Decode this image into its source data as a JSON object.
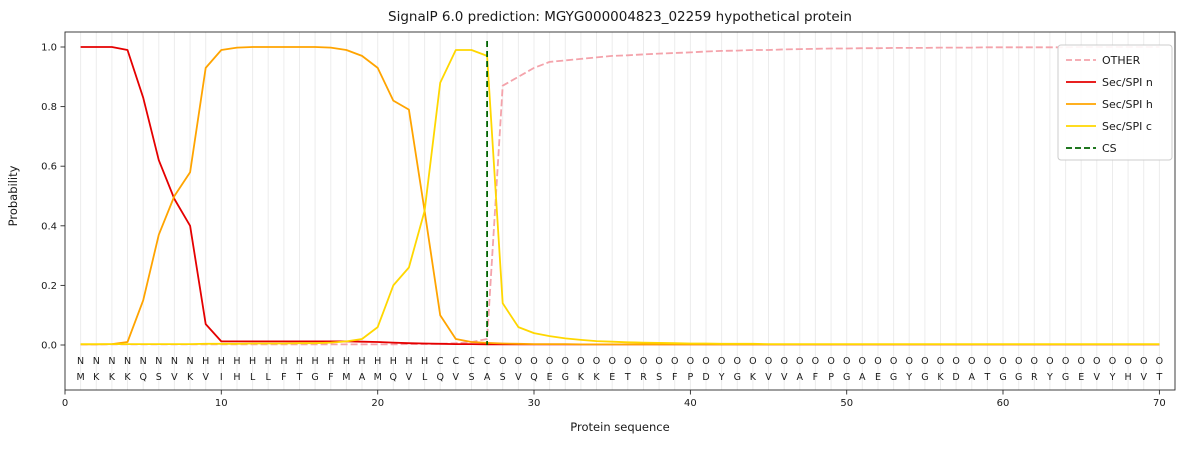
{
  "chart_data": {
    "type": "line",
    "title": "SignalP 6.0 prediction: MGYG000004823_02259 hypothetical protein",
    "xlabel": "Protein sequence",
    "ylabel": "Probability",
    "xlim": [
      0,
      71
    ],
    "ylim": [
      -0.15,
      1.05
    ],
    "x_ticks": [
      0,
      10,
      20,
      30,
      40,
      50,
      60,
      70
    ],
    "y_ticks": [
      0,
      0.2,
      0.4,
      0.6,
      0.8,
      1.0
    ],
    "grid": "vertical-per-residue",
    "legend_position": "upper-right",
    "cs_position": 27,
    "sequence": "MKKKQSVKVIHLLFTGFMAMQVLQVSASVQEGKKETRSFPDYGKVVAFPGAEGYGKDATGGRYGEVYHVT",
    "regions": [
      {
        "label": "N",
        "start": 1,
        "end": 8,
        "color": "#e50000"
      },
      {
        "label": "H",
        "start": 9,
        "end": 23,
        "color": "#ffa400"
      },
      {
        "label": "C",
        "start": 24,
        "end": 27,
        "color": "#eec900"
      },
      {
        "label": "O",
        "start": 28,
        "end": 70,
        "color": "#8c8c8c"
      }
    ],
    "series": [
      {
        "name": "OTHER",
        "color": "#f4a3ab",
        "dash": true,
        "values": [
          0.002,
          0.002,
          0.002,
          0.002,
          0.002,
          0.002,
          0.002,
          0.002,
          0.002,
          0.002,
          0.002,
          0.002,
          0.002,
          0.002,
          0.002,
          0.002,
          0.002,
          0.002,
          0.002,
          0.002,
          0.002,
          0.003,
          0.003,
          0.004,
          0.006,
          0.01,
          0.02,
          0.87,
          0.9,
          0.93,
          0.95,
          0.955,
          0.96,
          0.965,
          0.97,
          0.972,
          0.975,
          0.978,
          0.98,
          0.982,
          0.985,
          0.987,
          0.988,
          0.99,
          0.99,
          0.992,
          0.993,
          0.994,
          0.995,
          0.995,
          0.996,
          0.996,
          0.997,
          0.997,
          0.997,
          0.998,
          0.998,
          0.998,
          0.999,
          0.999,
          0.999,
          0.999,
          0.999,
          0.999,
          1.0,
          1.0,
          1.0,
          1.0,
          1.0,
          1.0
        ]
      },
      {
        "name": "Sec/SPI n",
        "color": "#e50000",
        "dash": false,
        "values": [
          1.0,
          1.0,
          1.0,
          0.99,
          0.83,
          0.62,
          0.49,
          0.4,
          0.07,
          0.012,
          0.012,
          0.012,
          0.012,
          0.012,
          0.012,
          0.012,
          0.012,
          0.012,
          0.011,
          0.01,
          0.008,
          0.006,
          0.005,
          0.004,
          0.003,
          0.003,
          0.002,
          0.002,
          0.002,
          0.002,
          0.002,
          0.002,
          0.002,
          0.002,
          0.002,
          0.002,
          0.002,
          0.002,
          0.002,
          0.002,
          0.002,
          0.002,
          0.002,
          0.002,
          0.002,
          0.002,
          0.002,
          0.002,
          0.002,
          0.002,
          0.002,
          0.002,
          0.002,
          0.002,
          0.002,
          0.002,
          0.002,
          0.002,
          0.002,
          0.002,
          0.002,
          0.002,
          0.002,
          0.002,
          0.002,
          0.002,
          0.002,
          0.002,
          0.002,
          0.002
        ]
      },
      {
        "name": "Sec/SPI h",
        "color": "#ffa400",
        "dash": false,
        "values": [
          0.002,
          0.002,
          0.003,
          0.01,
          0.15,
          0.37,
          0.5,
          0.58,
          0.93,
          0.99,
          0.998,
          1.0,
          1.0,
          1.0,
          1.0,
          1.0,
          0.998,
          0.99,
          0.97,
          0.93,
          0.82,
          0.79,
          0.45,
          0.1,
          0.02,
          0.01,
          0.007,
          0.005,
          0.004,
          0.003,
          0.003,
          0.003,
          0.002,
          0.002,
          0.002,
          0.002,
          0.002,
          0.002,
          0.002,
          0.002,
          0.002,
          0.002,
          0.002,
          0.002,
          0.002,
          0.002,
          0.002,
          0.002,
          0.002,
          0.002,
          0.002,
          0.002,
          0.002,
          0.002,
          0.002,
          0.002,
          0.002,
          0.002,
          0.002,
          0.002,
          0.002,
          0.002,
          0.002,
          0.002,
          0.002,
          0.002,
          0.002,
          0.002,
          0.002,
          0.002
        ]
      },
      {
        "name": "Sec/SPI c",
        "color": "#ffd700",
        "dash": false,
        "values": [
          0.003,
          0.003,
          0.003,
          0.003,
          0.003,
          0.003,
          0.003,
          0.003,
          0.004,
          0.004,
          0.004,
          0.005,
          0.005,
          0.005,
          0.006,
          0.006,
          0.008,
          0.012,
          0.02,
          0.06,
          0.2,
          0.26,
          0.45,
          0.88,
          0.99,
          0.99,
          0.97,
          0.14,
          0.06,
          0.04,
          0.03,
          0.022,
          0.017,
          0.013,
          0.011,
          0.009,
          0.008,
          0.007,
          0.006,
          0.005,
          0.005,
          0.004,
          0.004,
          0.004,
          0.003,
          0.003,
          0.003,
          0.003,
          0.003,
          0.003,
          0.003,
          0.003,
          0.003,
          0.003,
          0.003,
          0.003,
          0.003,
          0.003,
          0.003,
          0.003,
          0.003,
          0.003,
          0.003,
          0.003,
          0.003,
          0.003,
          0.003,
          0.003,
          0.003,
          0.003
        ]
      },
      {
        "name": "CS",
        "color": "#006400",
        "dash": true,
        "type": "vline",
        "x": 27
      }
    ]
  }
}
